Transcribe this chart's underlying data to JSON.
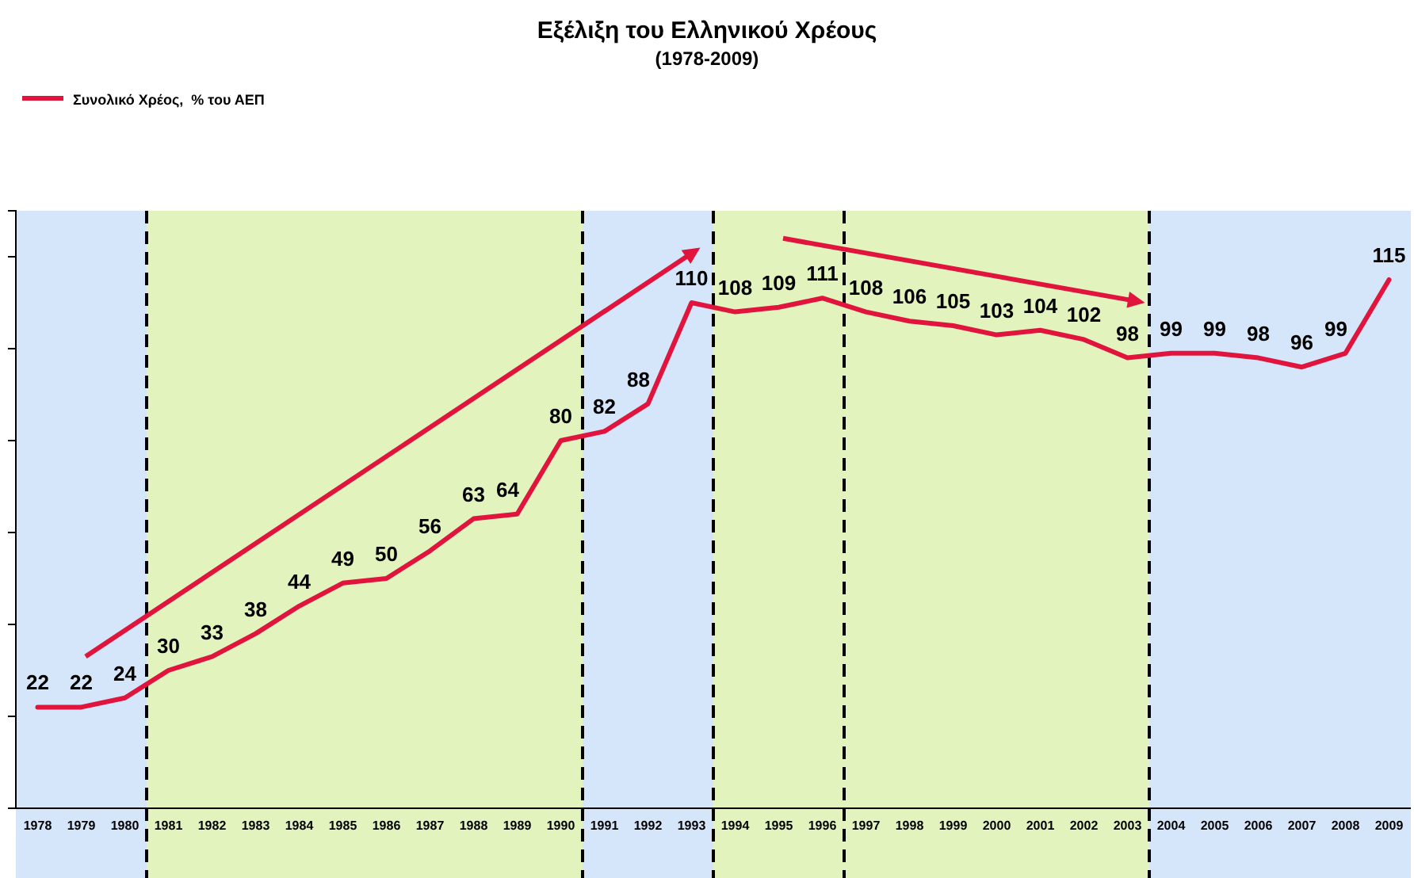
{
  "chart_data": {
    "type": "line",
    "title": "Εξέλιξη του Ελληνικού Χρέους",
    "subtitle": "(1978-2009)",
    "categories": [
      "1978",
      "1979",
      "1980",
      "1981",
      "1982",
      "1983",
      "1984",
      "1985",
      "1986",
      "1987",
      "1988",
      "1989",
      "1990",
      "1991",
      "1992",
      "1993",
      "1994",
      "1995",
      "1996",
      "1997",
      "1998",
      "1999",
      "2000",
      "2001",
      "2002",
      "2003",
      "2004",
      "2005",
      "2006",
      "2007",
      "2008",
      "2009"
    ],
    "series": [
      {
        "name": "Συνολικό Χρέος,  % του ΑΕΠ",
        "color": "#e0143c",
        "values": [
          22,
          22,
          24,
          30,
          33,
          38,
          44,
          49,
          50,
          56,
          63,
          64,
          80,
          82,
          88,
          110,
          108,
          109,
          111,
          108,
          106,
          105,
          103,
          104,
          102,
          98,
          99,
          99,
          98,
          96,
          99,
          115
        ]
      }
    ],
    "ylim": [
      0,
      130
    ],
    "yticks": [
      {
        "value": 20,
        "label": null
      },
      {
        "value": 40,
        "label": null
      },
      {
        "value": 60,
        "label": null
      },
      {
        "value": 80,
        "label": null
      },
      {
        "value": 100,
        "label": null
      },
      {
        "value": 120,
        "label": null
      }
    ],
    "tick_labels": "x",
    "data_labels": true,
    "legend": "top left",
    "grid": false,
    "marker": "none",
    "line_style": "solid",
    "bands": [
      {
        "axis": "x",
        "from": "1978",
        "to": "1980",
        "color": "#d5e5fa"
      },
      {
        "axis": "x",
        "from": "1981",
        "to": "1990",
        "color": "#e2f3bd"
      },
      {
        "axis": "x",
        "from": "1991",
        "to": "1993",
        "color": "#d5e5fa"
      },
      {
        "axis": "x",
        "from": "1994",
        "to": "1996",
        "color": "#e2f3bd"
      },
      {
        "axis": "x",
        "from": "1997",
        "to": "2003",
        "color": "#e2f3bd"
      },
      {
        "axis": "x",
        "from": "2004",
        "to": "2009",
        "color": "#d5e5fa"
      }
    ]
  }
}
